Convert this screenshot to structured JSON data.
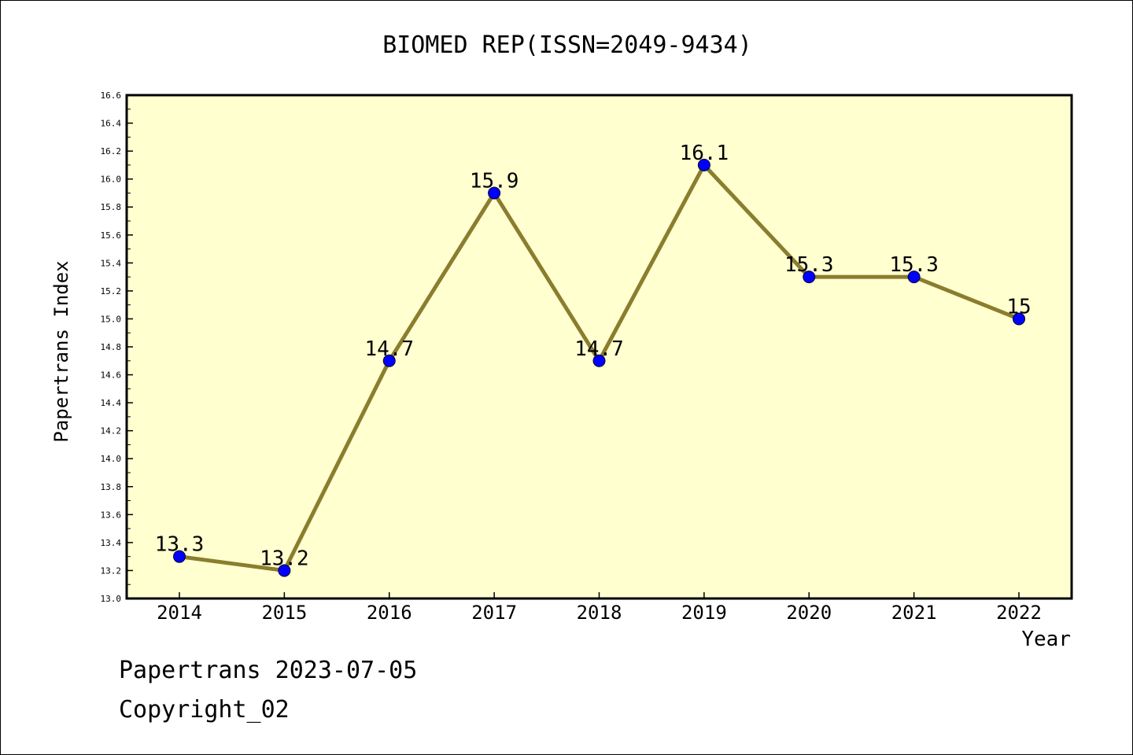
{
  "chart_data": {
    "type": "line",
    "title": "BIOMED REP(ISSN=2049-9434)",
    "xlabel": "Year",
    "ylabel": "Papertrans Index",
    "categories": [
      "2014",
      "2015",
      "2016",
      "2017",
      "2018",
      "2019",
      "2020",
      "2021",
      "2022"
    ],
    "values": [
      13.3,
      13.2,
      14.7,
      15.9,
      14.7,
      16.1,
      15.3,
      15.3,
      15.0
    ],
    "data_labels": [
      "13.3",
      "13.2",
      "14.7",
      "15.9",
      "14.7",
      "16.1",
      "15.3",
      "15.3",
      "15"
    ],
    "y_ticks": [
      "13.0",
      "13.2",
      "13.4",
      "13.6",
      "13.8",
      "14.0",
      "14.2",
      "14.4",
      "14.6",
      "14.8",
      "15.0",
      "15.2",
      "15.4",
      "15.6",
      "15.8",
      "16.0",
      "16.2",
      "16.4",
      "16.6"
    ],
    "ylim": [
      13.0,
      16.6
    ],
    "grid": false,
    "colors": {
      "plot_background": "#ffffd0",
      "line": "#8b7d2e",
      "marker": "#0000ff"
    }
  },
  "footer": {
    "line1": "Papertrans 2023-07-05",
    "line2": "Copyright_02"
  }
}
